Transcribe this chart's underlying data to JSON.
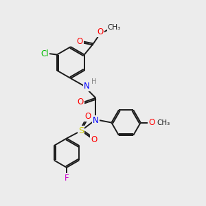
{
  "bg_color": "#ececec",
  "bond_color": "#1a1a1a",
  "atom_colors": {
    "O": "#ff0000",
    "N": "#0000ff",
    "Cl": "#00bb00",
    "S": "#cccc00",
    "F": "#cc00cc",
    "H_gray": "#888888",
    "C": "#1a1a1a"
  },
  "lw": 1.4,
  "fs": 8.5,
  "ring_r": 0.72,
  "xlim": [
    0,
    10
  ],
  "ylim": [
    0,
    10
  ]
}
